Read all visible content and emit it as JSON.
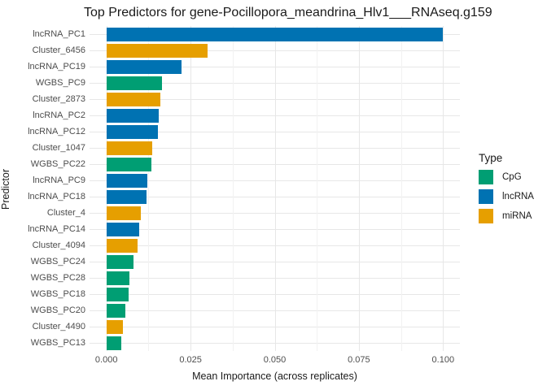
{
  "legend": {
    "title": "Type",
    "items": [
      {
        "label": "CpG",
        "color": "#009E73"
      },
      {
        "label": "lncRNA",
        "color": "#0072B2"
      },
      {
        "label": "miRNA",
        "color": "#E69F00"
      }
    ]
  },
  "chart_data": {
    "type": "bar",
    "orientation": "horizontal",
    "title": "Top Predictors for gene-Pocillopora_meandrina_Hlv1___RNAseq.g159",
    "xlabel": "Mean Importance (across replicates)",
    "ylabel": "Predictor",
    "xlim": [
      -0.005,
      0.105
    ],
    "x_major_ticks": [
      0.0,
      0.025,
      0.05,
      0.075,
      0.1
    ],
    "x_tick_labels": [
      "0.000",
      "0.025",
      "0.050",
      "0.075",
      "0.100"
    ],
    "x_minor_ticks": [
      0.0125,
      0.0375,
      0.0625,
      0.0875
    ],
    "grid": true,
    "legend_position": "right",
    "type_colors": {
      "CpG": "#009E73",
      "lncRNA": "#0072B2",
      "miRNA": "#E69F00"
    },
    "bars": [
      {
        "predictor": "lncRNA_PC1",
        "type": "lncRNA",
        "value": 0.1
      },
      {
        "predictor": "Cluster_6456",
        "type": "miRNA",
        "value": 0.0301
      },
      {
        "predictor": "lncRNA_PC19",
        "type": "lncRNA",
        "value": 0.0223
      },
      {
        "predictor": "WGBS_PC9",
        "type": "CpG",
        "value": 0.0166
      },
      {
        "predictor": "Cluster_2873",
        "type": "miRNA",
        "value": 0.0161
      },
      {
        "predictor": "lncRNA_PC2",
        "type": "lncRNA",
        "value": 0.0156
      },
      {
        "predictor": "lncRNA_PC12",
        "type": "lncRNA",
        "value": 0.0153
      },
      {
        "predictor": "Cluster_1047",
        "type": "miRNA",
        "value": 0.0137
      },
      {
        "predictor": "WGBS_PC22",
        "type": "CpG",
        "value": 0.0134
      },
      {
        "predictor": "lncRNA_PC9",
        "type": "lncRNA",
        "value": 0.0122
      },
      {
        "predictor": "lncRNA_PC18",
        "type": "lncRNA",
        "value": 0.012
      },
      {
        "predictor": "Cluster_4",
        "type": "miRNA",
        "value": 0.0103
      },
      {
        "predictor": "lncRNA_PC14",
        "type": "lncRNA",
        "value": 0.0098
      },
      {
        "predictor": "Cluster_4094",
        "type": "miRNA",
        "value": 0.0093
      },
      {
        "predictor": "WGBS_PC24",
        "type": "CpG",
        "value": 0.0081
      },
      {
        "predictor": "WGBS_PC28",
        "type": "CpG",
        "value": 0.0069
      },
      {
        "predictor": "WGBS_PC18",
        "type": "CpG",
        "value": 0.0067
      },
      {
        "predictor": "WGBS_PC20",
        "type": "CpG",
        "value": 0.0057
      },
      {
        "predictor": "Cluster_4490",
        "type": "miRNA",
        "value": 0.0049
      },
      {
        "predictor": "WGBS_PC13",
        "type": "CpG",
        "value": 0.0045
      }
    ]
  }
}
